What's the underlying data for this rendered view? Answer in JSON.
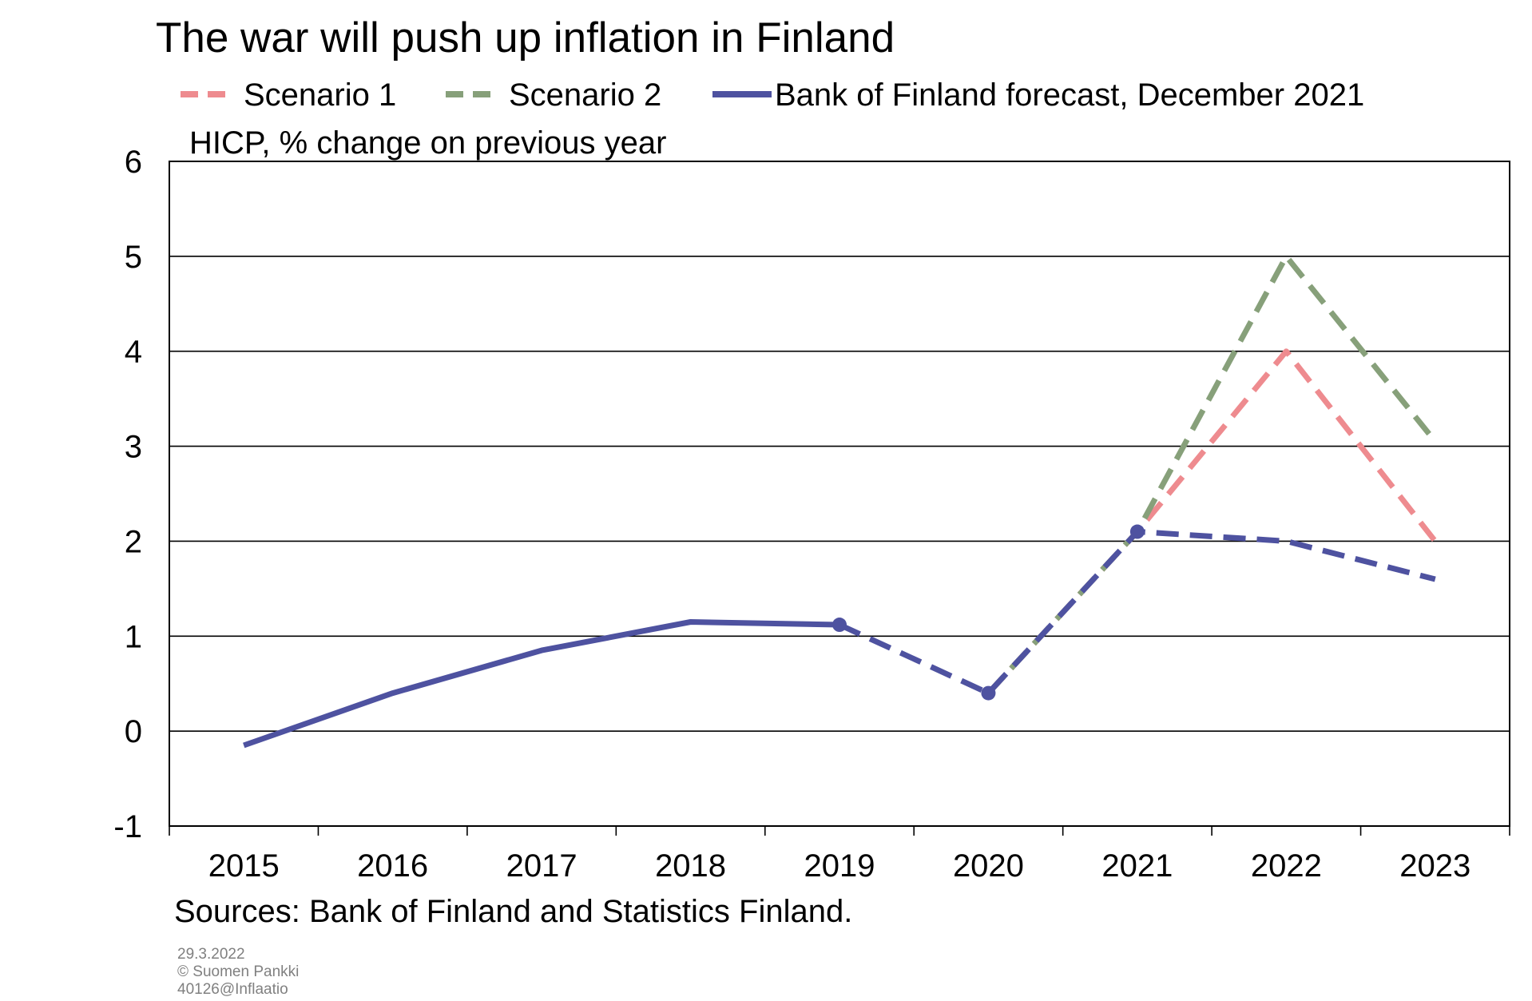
{
  "chart_data": {
    "type": "line",
    "title": "The war will push up inflation in Finland",
    "ylabel": "HICP, % change on previous year",
    "xlabel": "",
    "categories": [
      "2015",
      "2016",
      "2017",
      "2018",
      "2019",
      "2020",
      "2021",
      "2022",
      "2023"
    ],
    "ylim": [
      -1,
      6
    ],
    "yticks": [
      "-1",
      "0",
      "1",
      "2",
      "3",
      "4",
      "5",
      "6"
    ],
    "grid": true,
    "legend_position": "top",
    "series": [
      {
        "name": "Scenario 1",
        "color": "#EE8B8F",
        "style": "dashed",
        "x": [
          2020,
          2021,
          2022,
          2023
        ],
        "values": [
          0.4,
          2.1,
          4.0,
          2.0
        ]
      },
      {
        "name": "Scenario 2",
        "color": "#87A07A",
        "style": "dashed",
        "x": [
          2020,
          2021,
          2022,
          2023
        ],
        "values": [
          0.4,
          2.1,
          5.0,
          3.05
        ]
      },
      {
        "name": "Bank of Finland forecast, December 2021",
        "color": "#4E52A0",
        "style": "solid then dashed after 2019",
        "x": [
          2015,
          2016,
          2017,
          2018,
          2019,
          2020,
          2021,
          2022,
          2023
        ],
        "values": [
          -0.15,
          0.4,
          0.85,
          1.15,
          1.12,
          0.4,
          2.1,
          2.0,
          1.6
        ]
      }
    ],
    "source": "Sources: Bank of Finland and Statistics Finland.",
    "footer": [
      "29.3.2022",
      "© Suomen Pankki",
      "40126@Inflaatio"
    ]
  }
}
